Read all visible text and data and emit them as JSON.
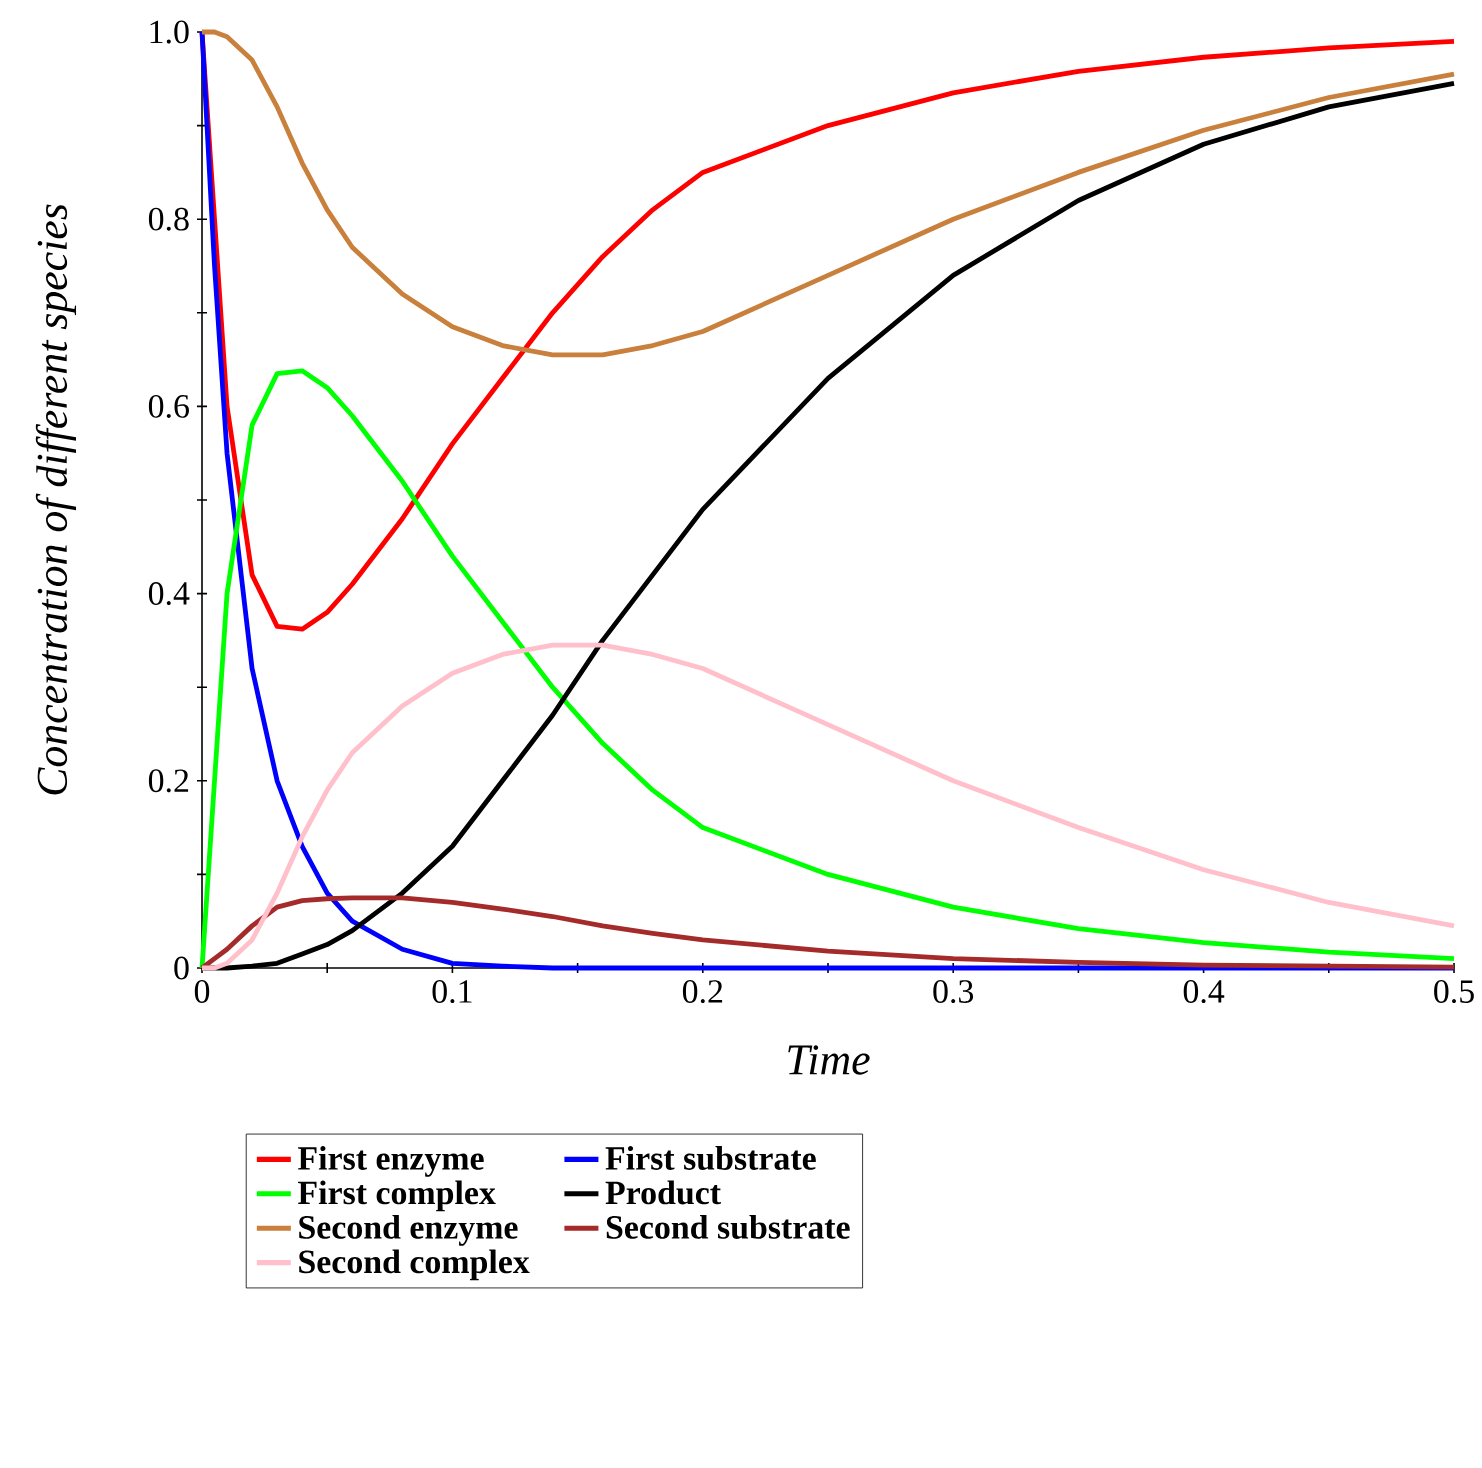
{
  "chart_data": {
    "type": "line",
    "xlabel": "Time",
    "ylabel": "Concentration of different species",
    "xlim": [
      0,
      0.5
    ],
    "ylim": [
      0,
      1
    ],
    "xticks": [
      0,
      {
        "value": 0.05,
        "label": null
      },
      0.1,
      {
        "value": 0.15,
        "label": null
      },
      0.2,
      {
        "value": 0.25,
        "label": null
      },
      0.3,
      {
        "value": 0.35,
        "label": null
      },
      0.4,
      {
        "value": 0.45,
        "label": null
      },
      0.5
    ],
    "yticks": [
      0,
      {
        "value": 0.1,
        "label": null
      },
      0.2,
      {
        "value": 0.3,
        "label": null
      },
      0.4,
      {
        "value": 0.5,
        "label": null
      },
      0.6,
      {
        "value": 0.7,
        "label": null
      },
      0.8,
      {
        "value": 0.9,
        "label": null
      },
      {
        "value": 1,
        "label": "1.0"
      }
    ],
    "x": [
      0,
      0.005,
      0.01,
      0.02,
      0.03,
      0.04,
      0.05,
      0.06,
      0.08,
      0.1,
      0.12,
      0.14,
      0.16,
      0.18,
      0.2,
      0.25,
      0.3,
      0.35,
      0.4,
      0.45,
      0.5
    ],
    "legend": "bottom",
    "series": [
      {
        "name": "First enzyme",
        "color": "#ff0000",
        "values": [
          1.0,
          0.8,
          0.6,
          0.42,
          0.365,
          0.362,
          0.38,
          0.41,
          0.48,
          0.56,
          0.63,
          0.7,
          0.76,
          0.81,
          0.85,
          0.9,
          0.935,
          0.958,
          0.973,
          0.983,
          0.99
        ]
      },
      {
        "name": "First substrate",
        "color": "#0000ff",
        "values": [
          1.0,
          0.75,
          0.55,
          0.32,
          0.2,
          0.13,
          0.08,
          0.05,
          0.02,
          0.005,
          0.002,
          0,
          0,
          0,
          0,
          0,
          0,
          0,
          0,
          0,
          0
        ]
      },
      {
        "name": "First complex",
        "color": "#00ff00",
        "values": [
          0,
          0.2,
          0.4,
          0.58,
          0.635,
          0.638,
          0.62,
          0.59,
          0.52,
          0.44,
          0.37,
          0.3,
          0.24,
          0.19,
          0.15,
          0.1,
          0.065,
          0.042,
          0.027,
          0.017,
          0.01
        ]
      },
      {
        "name": "Product",
        "color": "#000000",
        "values": [
          0,
          0,
          0,
          0.002,
          0.005,
          0.015,
          0.025,
          0.04,
          0.08,
          0.13,
          0.2,
          0.27,
          0.35,
          0.42,
          0.49,
          0.63,
          0.74,
          0.82,
          0.88,
          0.92,
          0.945
        ]
      },
      {
        "name": "Second enzyme",
        "color": "#c8803c",
        "values": [
          1.0,
          1.0,
          0.995,
          0.97,
          0.92,
          0.86,
          0.81,
          0.77,
          0.72,
          0.685,
          0.665,
          0.655,
          0.655,
          0.665,
          0.68,
          0.74,
          0.8,
          0.85,
          0.895,
          0.93,
          0.955
        ]
      },
      {
        "name": "Second substrate",
        "color": "#a52a2a",
        "values": [
          0,
          0.01,
          0.02,
          0.045,
          0.065,
          0.072,
          0.074,
          0.075,
          0.075,
          0.07,
          0.063,
          0.055,
          0.045,
          0.037,
          0.03,
          0.018,
          0.01,
          0.006,
          0.003,
          0.002,
          0.001
        ]
      },
      {
        "name": "Second complex",
        "color": "#ffc0cb",
        "values": [
          0,
          0,
          0.005,
          0.03,
          0.08,
          0.14,
          0.19,
          0.23,
          0.28,
          0.315,
          0.335,
          0.345,
          0.345,
          0.335,
          0.32,
          0.26,
          0.2,
          0.15,
          0.105,
          0.07,
          0.045
        ]
      }
    ]
  }
}
